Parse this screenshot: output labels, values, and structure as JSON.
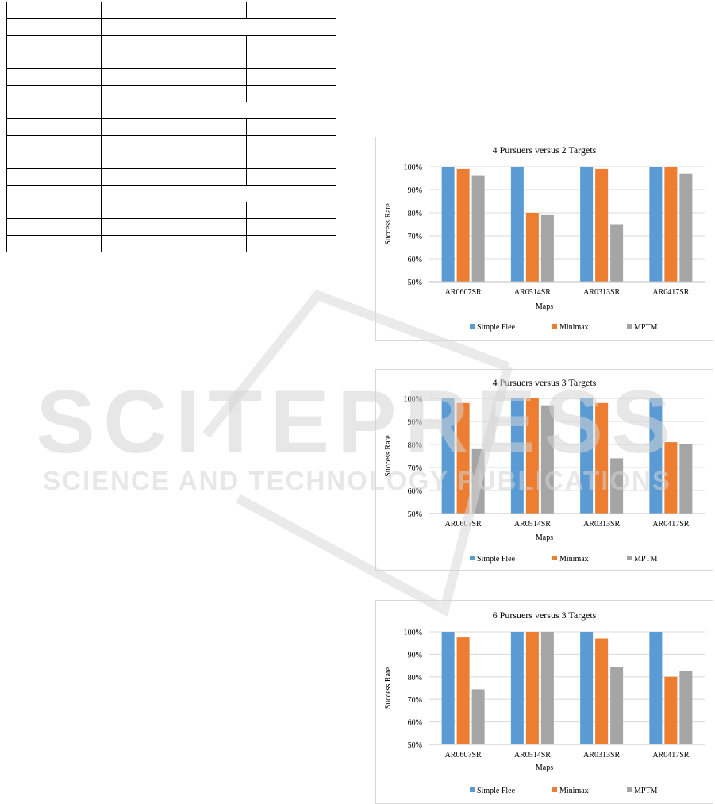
{
  "table": {
    "rows": 15,
    "cols": 4,
    "merged_rows": [
      1,
      6,
      11
    ]
  },
  "watermark": {
    "line1": "SCITEPRESS",
    "line2": "SCIENCE AND TECHNOLOGY PUBLICATIONS"
  },
  "chart_data": [
    {
      "type": "bar",
      "title": "4 Pursuers versus 2 Targets",
      "xlabel": "Maps",
      "ylabel": "Success Rate",
      "categories": [
        "AR0607SR",
        "AR0514SR",
        "AR0313SR",
        "AR0417SR"
      ],
      "yticks": [
        "50%",
        "60%",
        "70%",
        "80%",
        "90%",
        "100%"
      ],
      "ylim": [
        50,
        100
      ],
      "series": [
        {
          "name": "Simple Flee",
          "color": "#5b9bd5",
          "values": [
            100,
            100,
            100,
            100
          ]
        },
        {
          "name": "Minimax",
          "color": "#ed7d31",
          "values": [
            99,
            80,
            99,
            100
          ]
        },
        {
          "name": "MPTM",
          "color": "#a5a5a5",
          "values": [
            96,
            79,
            75,
            97
          ]
        }
      ],
      "legend": "bottom",
      "grid": true
    },
    {
      "type": "bar",
      "title": "4 Pursuers versus 3 Targets",
      "xlabel": "Maps",
      "ylabel": "Success Rate",
      "categories": [
        "AR0607SR",
        "AR0514SR",
        "AR0313SR",
        "AR0417SR"
      ],
      "yticks": [
        "50%",
        "60%",
        "70%",
        "80%",
        "90%",
        "100%"
      ],
      "ylim": [
        50,
        100
      ],
      "series": [
        {
          "name": "Simple Flee",
          "color": "#5b9bd5",
          "values": [
            100,
            100,
            100,
            100
          ]
        },
        {
          "name": "Minimax",
          "color": "#ed7d31",
          "values": [
            98,
            100,
            98,
            81
          ]
        },
        {
          "name": "MPTM",
          "color": "#a5a5a5",
          "values": [
            78,
            97,
            74,
            80
          ]
        }
      ],
      "legend": "bottom",
      "grid": true
    },
    {
      "type": "bar",
      "title": "6 Pursuers versus 3 Targets",
      "xlabel": "Maps",
      "ylabel": "Success Rate",
      "categories": [
        "AR0607SR",
        "AR0514SR",
        "AR0313SR",
        "AR0417SR"
      ],
      "yticks": [
        "50%",
        "60%",
        "70%",
        "80%",
        "90%",
        "100%"
      ],
      "ylim": [
        50,
        100
      ],
      "series": [
        {
          "name": "Simple Flee",
          "color": "#5b9bd5",
          "values": [
            100,
            100,
            100,
            100
          ]
        },
        {
          "name": "Minimax",
          "color": "#ed7d31",
          "values": [
            97.5,
            100,
            97,
            80
          ]
        },
        {
          "name": "MPTM",
          "color": "#a5a5a5",
          "values": [
            74.5,
            100,
            84.5,
            82.5
          ]
        }
      ],
      "legend": "bottom",
      "grid": true
    }
  ]
}
